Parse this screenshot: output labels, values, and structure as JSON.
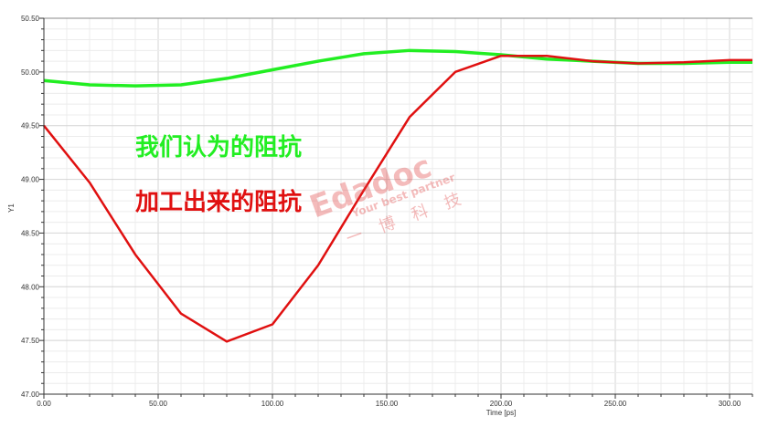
{
  "chart_data": {
    "type": "line",
    "title": "",
    "xlabel": "Time [ps]",
    "ylabel": "Y1",
    "xlim": [
      0,
      310
    ],
    "ylim": [
      47.0,
      50.5
    ],
    "x_ticks": [
      "0.00",
      "50.00",
      "100.00",
      "150.00",
      "200.00",
      "250.00",
      "300.00"
    ],
    "y_ticks": [
      "47.00",
      "47.50",
      "48.00",
      "48.50",
      "49.00",
      "49.50",
      "50.00",
      "50.50"
    ],
    "grid": true,
    "x": [
      0,
      20,
      40,
      60,
      80,
      100,
      120,
      140,
      160,
      180,
      200,
      220,
      240,
      260,
      280,
      300,
      310
    ],
    "series": [
      {
        "color": "#22ee22",
        "values": [
          49.92,
          49.88,
          49.87,
          49.88,
          49.94,
          50.02,
          50.1,
          50.17,
          50.2,
          50.19,
          50.16,
          50.12,
          50.1,
          50.08,
          50.08,
          50.09,
          50.09
        ]
      },
      {
        "color": "#e01010",
        "values": [
          49.5,
          48.97,
          48.3,
          47.75,
          47.49,
          47.65,
          48.2,
          48.9,
          49.58,
          50.0,
          50.15,
          50.15,
          50.1,
          50.08,
          50.09,
          50.11,
          50.11
        ]
      }
    ],
    "annotations": [
      {
        "text": "我们认为的阻抗",
        "color": "#22ee22"
      },
      {
        "text": "加工出来的阻抗",
        "color": "#e01010"
      }
    ]
  },
  "watermark": {
    "brand": "Edadoc",
    "slogan": "Your best partner",
    "cn": "一博科技"
  }
}
